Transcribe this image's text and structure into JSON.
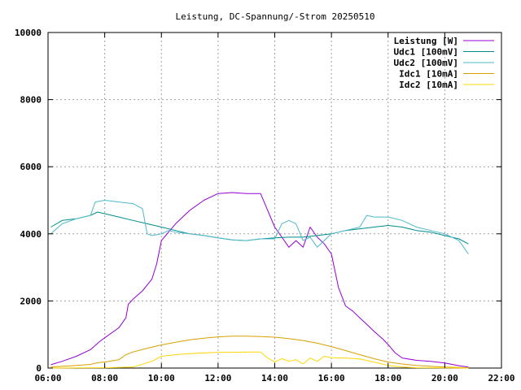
{
  "chart_data": {
    "type": "line",
    "title": "Leistung, DC-Spannung/-Strom 20250510",
    "xlabel": "",
    "ylabel": "",
    "xlim": [
      "06:00",
      "22:00"
    ],
    "ylim": [
      0,
      10000
    ],
    "x_ticks": [
      "06:00",
      "08:00",
      "10:00",
      "12:00",
      "14:00",
      "16:00",
      "18:00",
      "20:00",
      "22:00"
    ],
    "y_ticks": [
      "0",
      "2000",
      "4000",
      "6000",
      "8000",
      "10000"
    ],
    "grid": true,
    "legend_position": "top-right",
    "series": [
      {
        "name": "Leistung [W]",
        "color": "#9400d3",
        "x": [
          "06:06",
          "06:30",
          "07:00",
          "07:30",
          "07:50",
          "08:00",
          "08:30",
          "08:45",
          "08:50",
          "09:00",
          "09:20",
          "09:40",
          "09:50",
          "10:00",
          "10:30",
          "11:00",
          "11:30",
          "12:00",
          "12:30",
          "13:00",
          "13:30",
          "13:45",
          "14:00",
          "14:15",
          "14:30",
          "14:45",
          "15:00",
          "15:15",
          "15:30",
          "15:45",
          "16:00",
          "16:15",
          "16:30",
          "16:45",
          "17:00",
          "17:15",
          "17:30",
          "17:50",
          "18:00",
          "18:15",
          "18:30",
          "19:00",
          "19:30",
          "20:00",
          "20:30",
          "20:50"
        ],
        "y": [
          100,
          200,
          350,
          550,
          800,
          900,
          1200,
          1500,
          1900,
          2050,
          2300,
          2650,
          3100,
          3800,
          4300,
          4700,
          5000,
          5200,
          5230,
          5200,
          5200,
          4700,
          4200,
          3900,
          3600,
          3800,
          3600,
          4200,
          3900,
          3700,
          3400,
          2400,
          1850,
          1700,
          1500,
          1300,
          1100,
          850,
          700,
          450,
          300,
          230,
          200,
          150,
          70,
          30
        ]
      },
      {
        "name": "Udc1 [100mV]",
        "color": "#008b8b",
        "x": [
          "06:06",
          "06:30",
          "07:00",
          "07:30",
          "07:45",
          "08:00",
          "08:30",
          "09:00",
          "09:30",
          "10:00",
          "10:30",
          "11:00",
          "11:30",
          "12:00",
          "12:30",
          "13:00",
          "13:30",
          "14:00",
          "14:30",
          "15:00",
          "15:30",
          "16:00",
          "16:30",
          "17:00",
          "17:30",
          "18:00",
          "18:30",
          "19:00",
          "19:30",
          "20:00",
          "20:30",
          "20:50"
        ],
        "y": [
          4200,
          4400,
          4450,
          4550,
          4650,
          4600,
          4500,
          4400,
          4300,
          4200,
          4100,
          4000,
          3950,
          3880,
          3820,
          3800,
          3850,
          3880,
          3900,
          3900,
          3950,
          4000,
          4100,
          4150,
          4200,
          4250,
          4200,
          4100,
          4050,
          3950,
          3850,
          3700
        ]
      },
      {
        "name": "Udc2 [100mV]",
        "color": "#4db8c8",
        "x": [
          "06:06",
          "06:30",
          "07:00",
          "07:30",
          "07:40",
          "08:00",
          "08:30",
          "09:00",
          "09:20",
          "09:30",
          "09:40",
          "10:00",
          "10:15",
          "10:30",
          "11:00",
          "11:30",
          "12:00",
          "12:30",
          "13:00",
          "13:30",
          "14:00",
          "14:15",
          "14:30",
          "14:45",
          "15:00",
          "15:15",
          "15:30",
          "16:00",
          "16:30",
          "17:00",
          "17:15",
          "17:30",
          "18:00",
          "18:30",
          "19:00",
          "19:30",
          "20:00",
          "20:30",
          "20:50"
        ],
        "y": [
          4000,
          4300,
          4450,
          4550,
          4950,
          5000,
          4950,
          4900,
          4750,
          4000,
          3950,
          4000,
          4100,
          4050,
          4000,
          3950,
          3880,
          3820,
          3800,
          3850,
          3850,
          4300,
          4400,
          4300,
          3800,
          3900,
          3600,
          4000,
          4100,
          4200,
          4550,
          4500,
          4500,
          4400,
          4200,
          4100,
          4000,
          3800,
          3400
        ]
      },
      {
        "name": "Idc1 [10mA]",
        "color": "#d9a000",
        "x": [
          "06:06",
          "06:30",
          "07:00",
          "07:30",
          "07:45",
          "08:00",
          "08:30",
          "08:45",
          "09:00",
          "09:30",
          "10:00",
          "10:30",
          "11:00",
          "11:30",
          "12:00",
          "12:30",
          "13:00",
          "13:30",
          "14:00",
          "14:30",
          "15:00",
          "15:30",
          "16:00",
          "16:30",
          "17:00",
          "17:30",
          "18:00",
          "18:30",
          "19:00",
          "19:30",
          "20:00",
          "20:30",
          "20:50"
        ],
        "y": [
          30,
          50,
          80,
          110,
          160,
          180,
          250,
          400,
          480,
          590,
          690,
          770,
          840,
          890,
          930,
          950,
          950,
          940,
          920,
          880,
          820,
          740,
          640,
          520,
          400,
          280,
          180,
          120,
          80,
          50,
          30,
          20,
          10
        ]
      },
      {
        "name": "Idc2 [10mA]",
        "color": "#ffd700",
        "x": [
          "06:06",
          "07:00",
          "08:00",
          "09:00",
          "09:40",
          "10:00",
          "10:30",
          "11:00",
          "11:30",
          "12:00",
          "12:30",
          "13:00",
          "13:30",
          "13:45",
          "14:00",
          "14:15",
          "14:30",
          "14:45",
          "15:00",
          "15:15",
          "15:30",
          "15:45",
          "16:00",
          "16:30",
          "17:00",
          "17:30",
          "18:00",
          "18:30",
          "19:00",
          "20:00",
          "20:50"
        ],
        "y": [
          0,
          5,
          10,
          30,
          200,
          350,
          400,
          430,
          450,
          470,
          470,
          480,
          480,
          300,
          180,
          280,
          200,
          250,
          120,
          300,
          200,
          350,
          310,
          300,
          270,
          180,
          80,
          30,
          10,
          5,
          0
        ]
      }
    ]
  }
}
